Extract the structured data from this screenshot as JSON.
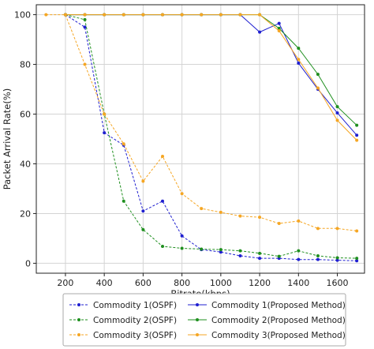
{
  "chart_data": {
    "type": "line",
    "xlabel": "Bitrate(kbps)",
    "ylabel": "Packet Arrival Rate(%)",
    "xlim": [
      50,
      1740
    ],
    "ylim": [
      -4,
      104
    ],
    "xticks": [
      200,
      400,
      600,
      800,
      1000,
      1200,
      1400,
      1600
    ],
    "yticks": [
      0,
      20,
      40,
      60,
      80,
      100
    ],
    "grid": true,
    "legend_position": "bottom-below",
    "x": [
      100,
      200,
      300,
      400,
      500,
      600,
      700,
      800,
      900,
      1000,
      1100,
      1200,
      1300,
      1400,
      1500,
      1600,
      1700
    ],
    "series": [
      {
        "name": "Commodity 1(OSPF)",
        "color": "#1f1fd0",
        "style": "dashed",
        "x": [
          200,
          300,
          400,
          500,
          600,
          700,
          800,
          900,
          1000,
          1100,
          1200,
          1300,
          1400,
          1500,
          1600,
          1700
        ],
        "values": [
          100,
          95,
          52.5,
          47.5,
          21,
          25,
          11,
          5.5,
          4.5,
          3,
          2,
          2,
          1.5,
          1.5,
          1.2,
          1
        ]
      },
      {
        "name": "Commodity 2(OSPF)",
        "color": "#1f8f1f",
        "style": "dashed",
        "x": [
          200,
          300,
          400,
          500,
          600,
          700,
          800,
          900,
          1000,
          1100,
          1200,
          1300,
          1400,
          1500,
          1600,
          1700
        ],
        "values": [
          100,
          98,
          60,
          25,
          13.5,
          6.8,
          6,
          5.7,
          5.5,
          5,
          4,
          2.8,
          5,
          3,
          2.2,
          2
        ]
      },
      {
        "name": "Commodity 3(OSPF)",
        "color": "#f5a623",
        "style": "dashed",
        "x": [
          100,
          200,
          300,
          400,
          500,
          600,
          700,
          800,
          900,
          1000,
          1100,
          1200,
          1300,
          1400,
          1500,
          1600,
          1700
        ],
        "values": [
          100,
          100,
          80,
          60,
          48,
          33,
          43,
          28,
          22,
          20.5,
          19,
          18.5,
          16,
          17,
          14,
          14,
          13
        ]
      },
      {
        "name": "Commodity 1(Proposed Method)",
        "color": "#1f1fd0",
        "style": "solid",
        "x": [
          200,
          300,
          400,
          500,
          600,
          700,
          800,
          900,
          1000,
          1100,
          1200,
          1300,
          1400,
          1500,
          1600,
          1700
        ],
        "values": [
          100,
          100,
          100,
          100,
          100,
          100,
          100,
          100,
          100,
          100,
          93,
          96.5,
          80.5,
          70,
          60.5,
          51.5
        ]
      },
      {
        "name": "Commodity 2(Proposed Method)",
        "color": "#1f8f1f",
        "style": "solid",
        "x": [
          200,
          300,
          400,
          500,
          600,
          700,
          800,
          900,
          1000,
          1100,
          1200,
          1300,
          1400,
          1500,
          1600,
          1700
        ],
        "values": [
          100,
          100,
          100,
          100,
          100,
          100,
          100,
          100,
          100,
          100,
          100,
          94.5,
          86.5,
          76,
          63,
          55.5
        ]
      },
      {
        "name": "Commodity 3(Proposed Method)",
        "color": "#f5a623",
        "style": "solid",
        "x": [
          200,
          300,
          400,
          500,
          600,
          700,
          800,
          900,
          1000,
          1100,
          1200,
          1300,
          1400,
          1500,
          1600,
          1700
        ],
        "values": [
          100,
          100,
          100,
          100,
          100,
          100,
          100,
          100,
          100,
          100,
          100,
          93.5,
          82,
          70.5,
          57.5,
          49.5
        ]
      }
    ]
  }
}
